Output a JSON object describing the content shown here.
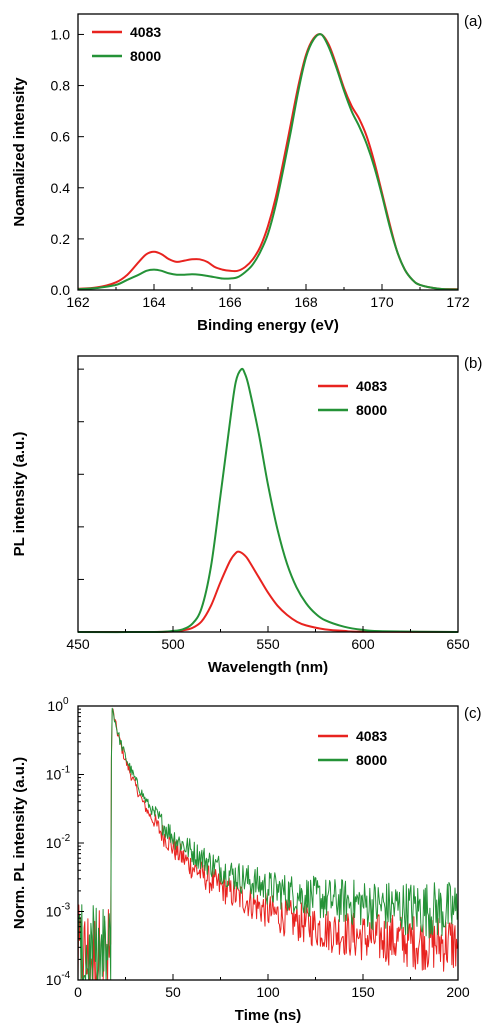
{
  "colors": {
    "series_4083": "#e8231f",
    "series_8000": "#249237"
  },
  "chart_data": [
    {
      "id": "a",
      "type": "line",
      "panel_label": "(a)",
      "xlabel": "Binding energy (eV)",
      "ylabel": "Noamalized intensity",
      "xlim": [
        162,
        172
      ],
      "ylim": [
        0,
        1.08
      ],
      "xticks": [
        162,
        164,
        166,
        168,
        170,
        172
      ],
      "yticks": [
        0.0,
        0.2,
        0.4,
        0.6,
        0.8,
        1.0
      ],
      "xtick_labels": [
        "162",
        "164",
        "166",
        "168",
        "170",
        "172"
      ],
      "ytick_labels": [
        "0.0",
        "0.2",
        "0.4",
        "0.6",
        "0.8",
        "1.0"
      ],
      "legend_position": "top-left",
      "series": [
        {
          "name": "4083",
          "color": "#e8231f",
          "x": [
            162,
            162.5,
            163,
            163.3,
            163.6,
            163.8,
            164,
            164.2,
            164.4,
            164.6,
            164.8,
            165,
            165.2,
            165.4,
            165.6,
            165.8,
            166,
            166.2,
            166.4,
            166.6,
            166.8,
            167,
            167.2,
            167.4,
            167.6,
            167.8,
            168,
            168.2,
            168.4,
            168.6,
            168.8,
            169,
            169.2,
            169.4,
            169.6,
            169.8,
            170,
            170.2,
            170.4,
            170.6,
            170.8,
            171,
            171.5,
            172
          ],
          "y": [
            0.005,
            0.01,
            0.03,
            0.06,
            0.11,
            0.14,
            0.15,
            0.14,
            0.12,
            0.11,
            0.115,
            0.12,
            0.12,
            0.11,
            0.09,
            0.08,
            0.075,
            0.075,
            0.09,
            0.12,
            0.17,
            0.25,
            0.36,
            0.5,
            0.65,
            0.8,
            0.92,
            0.985,
            1.0,
            0.96,
            0.88,
            0.79,
            0.72,
            0.67,
            0.6,
            0.5,
            0.38,
            0.26,
            0.15,
            0.08,
            0.04,
            0.02,
            0.005,
            0.003
          ]
        },
        {
          "name": "8000",
          "color": "#249237",
          "x": [
            162,
            162.5,
            163,
            163.3,
            163.6,
            163.8,
            164,
            164.2,
            164.4,
            164.6,
            164.8,
            165,
            165.2,
            165.4,
            165.6,
            165.8,
            166,
            166.2,
            166.4,
            166.6,
            166.8,
            167,
            167.2,
            167.4,
            167.6,
            167.8,
            168,
            168.2,
            168.4,
            168.6,
            168.8,
            169,
            169.2,
            169.4,
            169.6,
            169.8,
            170,
            170.2,
            170.4,
            170.6,
            170.8,
            171,
            171.5,
            172
          ],
          "y": [
            0.003,
            0.008,
            0.02,
            0.04,
            0.06,
            0.075,
            0.08,
            0.075,
            0.065,
            0.06,
            0.06,
            0.062,
            0.06,
            0.055,
            0.05,
            0.045,
            0.045,
            0.05,
            0.07,
            0.1,
            0.15,
            0.22,
            0.33,
            0.47,
            0.62,
            0.78,
            0.91,
            0.98,
            1.0,
            0.95,
            0.87,
            0.78,
            0.7,
            0.64,
            0.57,
            0.48,
            0.37,
            0.25,
            0.15,
            0.08,
            0.04,
            0.02,
            0.005,
            0.002
          ]
        }
      ]
    },
    {
      "id": "b",
      "type": "line",
      "panel_label": "(b)",
      "xlabel": "Wavelength (nm)",
      "ylabel": "PL intensity (a.u.)",
      "xlim": [
        450,
        650
      ],
      "ylim": [
        0,
        1.05
      ],
      "xticks": [
        450,
        500,
        550,
        600,
        650
      ],
      "yticks": [
        0.2,
        0.4,
        0.6,
        0.8,
        1.0
      ],
      "xtick_labels": [
        "450",
        "500",
        "550",
        "600",
        "650"
      ],
      "ytick_labels": [],
      "legend_position": "top-right",
      "series": [
        {
          "name": "4083",
          "color": "#e8231f",
          "x": [
            450,
            490,
            500,
            505,
            510,
            515,
            520,
            525,
            530,
            533,
            535,
            538,
            540,
            545,
            550,
            555,
            560,
            565,
            570,
            580,
            590,
            600,
            650
          ],
          "y": [
            0,
            0.0,
            0.002,
            0.006,
            0.015,
            0.04,
            0.1,
            0.19,
            0.27,
            0.3,
            0.305,
            0.29,
            0.27,
            0.21,
            0.15,
            0.1,
            0.065,
            0.04,
            0.025,
            0.01,
            0.004,
            0.001,
            0
          ]
        },
        {
          "name": "8000",
          "color": "#249237",
          "x": [
            450,
            490,
            500,
            505,
            510,
            515,
            520,
            525,
            530,
            533,
            536,
            538,
            540,
            545,
            550,
            555,
            560,
            565,
            570,
            575,
            580,
            590,
            600,
            610,
            650
          ],
          "y": [
            0,
            0.0,
            0.004,
            0.01,
            0.03,
            0.09,
            0.25,
            0.52,
            0.8,
            0.95,
            1.0,
            0.98,
            0.93,
            0.76,
            0.56,
            0.39,
            0.26,
            0.17,
            0.11,
            0.07,
            0.045,
            0.02,
            0.008,
            0.003,
            0
          ]
        }
      ]
    },
    {
      "id": "c",
      "type": "line",
      "yscale": "log",
      "panel_label": "(c)",
      "xlabel": "Time (ns)",
      "ylabel": "Norm. PL intensity (a.u.)",
      "xlim": [
        0,
        200
      ],
      "ylim": [
        0.0001,
        1
      ],
      "xticks": [
        0,
        50,
        100,
        150,
        200
      ],
      "xtick_labels": [
        "0",
        "50",
        "100",
        "150",
        "200"
      ],
      "ytick_labels": [
        "10",
        "10",
        "10",
        "10",
        "10"
      ],
      "ytick_exponents": [
        "-4",
        "-3",
        "-2",
        "-1",
        "0"
      ],
      "legend_position": "top-right",
      "series": [
        {
          "name": "4083",
          "color": "#e8231f",
          "noise_floor": 0.0002,
          "x": [
            0,
            16,
            18,
            19,
            20,
            22,
            25,
            30,
            35,
            40,
            50,
            60,
            70,
            80,
            90,
            100,
            110,
            120,
            130,
            140,
            150,
            160,
            170,
            180,
            190,
            200
          ],
          "y": [
            0.0002,
            0.0002,
            0.9,
            0.7,
            0.5,
            0.3,
            0.16,
            0.07,
            0.035,
            0.02,
            0.0085,
            0.0045,
            0.0028,
            0.0019,
            0.0014,
            0.001,
            0.0008,
            0.00065,
            0.00055,
            0.00048,
            0.00042,
            0.0004,
            0.00038,
            0.00036,
            0.00035,
            0.00034
          ]
        },
        {
          "name": "8000",
          "color": "#249237",
          "noise_floor": 0.0002,
          "x": [
            0,
            16,
            18,
            19,
            20,
            22,
            25,
            30,
            35,
            40,
            50,
            60,
            70,
            80,
            90,
            100,
            110,
            120,
            130,
            140,
            150,
            160,
            170,
            180,
            190,
            200
          ],
          "y": [
            0.0002,
            0.0002,
            0.9,
            0.72,
            0.52,
            0.32,
            0.18,
            0.085,
            0.045,
            0.027,
            0.0125,
            0.0075,
            0.005,
            0.0036,
            0.0028,
            0.0022,
            0.0019,
            0.0017,
            0.0015,
            0.0014,
            0.0013,
            0.0012,
            0.00115,
            0.0011,
            0.00105,
            0.001
          ]
        }
      ]
    }
  ]
}
